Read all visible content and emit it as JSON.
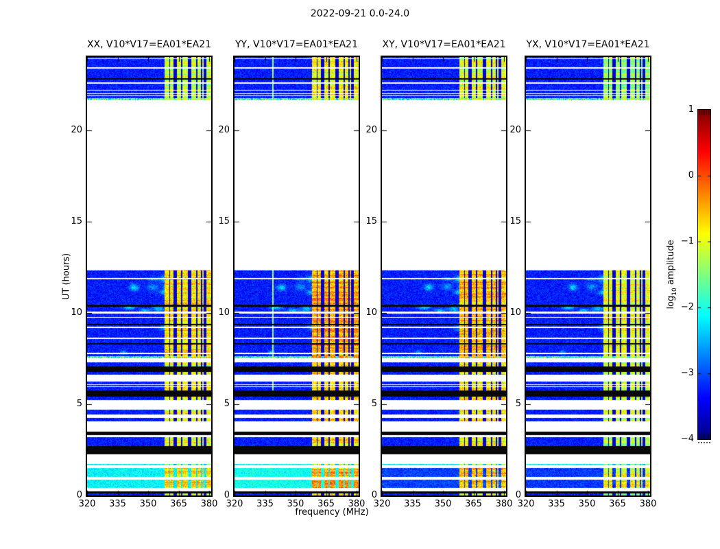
{
  "figure": {
    "title": "2022-09-21 0.0-24.0",
    "colors": {
      "background": "#ffffff",
      "frame": "#000000",
      "text": "#000000"
    }
  },
  "chart_data": {
    "type": "heatmap",
    "title": "2022-09-21 0.0-24.0",
    "xlabel": "frequency (MHz)",
    "ylabel": "UT (hours)",
    "x_range": [
      320,
      381
    ],
    "y_range": [
      0,
      24
    ],
    "x_ticks": [
      320,
      335,
      350,
      365,
      380
    ],
    "y_ticks": [
      0,
      5,
      10,
      15,
      20
    ],
    "grid": false,
    "colormap": "jet",
    "colorbar": {
      "label_pre": "log",
      "label_sub": "10",
      "label_post": " amplitude",
      "vmin": -4,
      "vmax": 1,
      "ticks": [
        1,
        0,
        -1,
        -2,
        -3,
        -4
      ],
      "tick_labels": [
        "1",
        "0",
        "−1",
        "−2",
        "−3",
        "−4"
      ]
    },
    "panels": [
      {
        "title": "XX, V10*V17=EA01*EA21",
        "rfi_offset": 0.0,
        "bright_base": -2.15,
        "vline": null
      },
      {
        "title": "YY, V10*V17=EA01*EA21",
        "rfi_offset": 0.3,
        "bright_base": -2.05,
        "vline": 339
      },
      {
        "title": "XY, V10*V17=EA01*EA21",
        "rfi_offset": 0.15,
        "bright_base": -3.05,
        "vline": null
      },
      {
        "title": "YX, V10*V17=EA01*EA21",
        "rfi_offset": -0.2,
        "bright_base": -3.1,
        "vline": null
      }
    ],
    "noise_base": -3.25,
    "rfi": {
      "range": [
        358,
        381
      ],
      "gaps": [
        [
          362.3,
          364.0
        ],
        [
          369.7,
          371.3
        ],
        [
          377.4,
          378.8
        ]
      ],
      "sublines": [
        360.6,
        366.4,
        374.0,
        376.2
      ],
      "level": -0.75
    },
    "bands": [
      {
        "t0": 21.62,
        "t1": 24.0,
        "type": "noise",
        "rfi_add": -0.45,
        "speckle_bottom": true,
        "lines": [
          {
            "t": 23.94,
            "c": "w",
            "w": 1
          },
          {
            "t": 23.42,
            "c": "w",
            "w": 2
          },
          {
            "t": 22.82,
            "c": "k",
            "w": 2
          },
          {
            "t": 22.6,
            "c": "w",
            "w": 2
          },
          {
            "t": 22.18,
            "c": "w",
            "w": 1
          },
          {
            "t": 22.02,
            "c": "w",
            "w": 1
          },
          {
            "t": 21.88,
            "c": "w",
            "w": 1
          }
        ]
      },
      {
        "t0": 7.52,
        "t1": 12.32,
        "type": "noise",
        "rfi_add": 0.0,
        "blobs": true,
        "speckle_bottom": true,
        "lines": [
          {
            "t": 11.9,
            "c": "w",
            "w": 2
          },
          {
            "t": 10.45,
            "c": "k",
            "w": 3
          },
          {
            "t": 10.05,
            "c": "w",
            "w": 3
          },
          {
            "t": 9.77,
            "c": "w",
            "w": 1
          },
          {
            "t": 9.4,
            "c": "k",
            "w": 2
          },
          {
            "t": 9.25,
            "c": "w",
            "w": 2
          },
          {
            "t": 8.65,
            "c": "w",
            "w": 2
          },
          {
            "t": 8.34,
            "c": "k",
            "w": 2
          },
          {
            "t": 7.8,
            "c": "w",
            "w": 2
          }
        ]
      },
      {
        "t0": 7.05,
        "t1": 7.28,
        "type": "stripe",
        "rfi_add": -0.25
      },
      {
        "t0": 6.75,
        "t1": 7.05,
        "type": "black"
      },
      {
        "t0": 6.6,
        "t1": 6.75,
        "type": "stripe",
        "rfi_add": -0.25
      },
      {
        "t0": 5.73,
        "t1": 6.22,
        "type": "noise",
        "rfi_add": -0.1,
        "lines": [
          {
            "t": 6.08,
            "c": "w",
            "w": 1
          },
          {
            "t": 5.97,
            "c": "w",
            "w": 1
          }
        ]
      },
      {
        "t0": 5.4,
        "t1": 5.73,
        "type": "black"
      },
      {
        "t0": 5.21,
        "t1": 5.4,
        "type": "stripe",
        "rfi_add": -0.25
      },
      {
        "t0": 4.42,
        "t1": 4.68,
        "type": "stripe",
        "rfi_add": -0.25
      },
      {
        "t0": 4.04,
        "t1": 4.23,
        "type": "stripe",
        "rfi_add": -0.25
      },
      {
        "t0": 3.29,
        "t1": 3.48,
        "type": "black"
      },
      {
        "t0": 2.91,
        "t1": 3.18,
        "type": "stripe",
        "rfi_add": -0.25
      },
      {
        "t0": 2.69,
        "t1": 2.91,
        "type": "stripe",
        "rfi_add": -0.3
      },
      {
        "t0": 2.24,
        "t1": 2.69,
        "type": "black"
      },
      {
        "t0": 1.66,
        "t1": 1.74,
        "type": "stripe",
        "base": -2.15,
        "rfi_add": -0.5
      },
      {
        "t0": 1.03,
        "t1": 1.51,
        "type": "bright",
        "rfi_add": 0.0
      },
      {
        "t0": 0.4,
        "t1": 0.85,
        "type": "bright",
        "rfi_add": 0.1
      },
      {
        "t0": 0.12,
        "t1": 0.24,
        "type": "black"
      },
      {
        "t0": 0.0,
        "t1": 0.12,
        "type": "stripe",
        "rfi_add": -0.45
      }
    ]
  }
}
